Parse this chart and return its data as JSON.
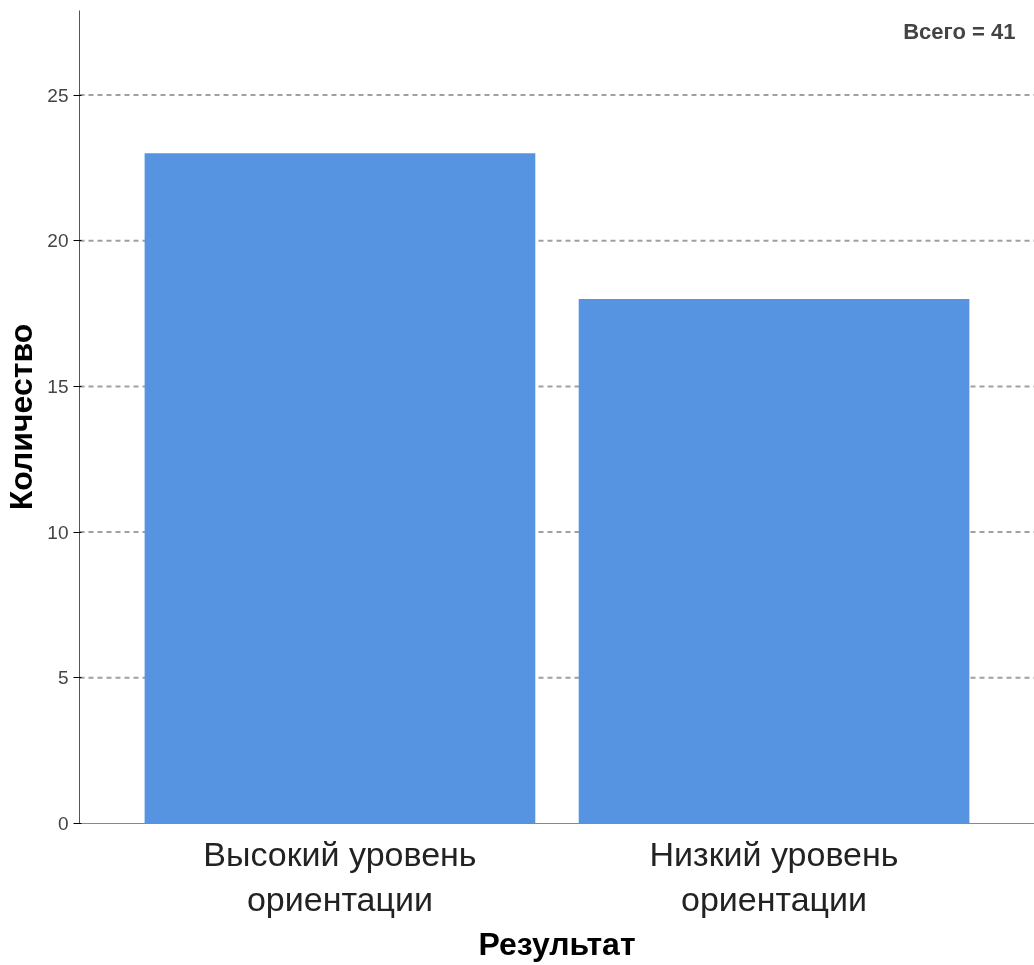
{
  "chart_data": {
    "type": "bar",
    "xlabel": "Результат",
    "ylabel": "Количество",
    "categories": [
      "Высокий уровень\nориентации",
      "Низкий уровень\nориентации"
    ],
    "values": [
      23,
      18
    ],
    "color": "#5694e2",
    "ylim": [
      0,
      27.9
    ],
    "yticks": [
      0,
      5,
      10,
      15,
      20,
      25
    ],
    "grid": "y",
    "annotations": [
      "Всего =  41"
    ]
  }
}
